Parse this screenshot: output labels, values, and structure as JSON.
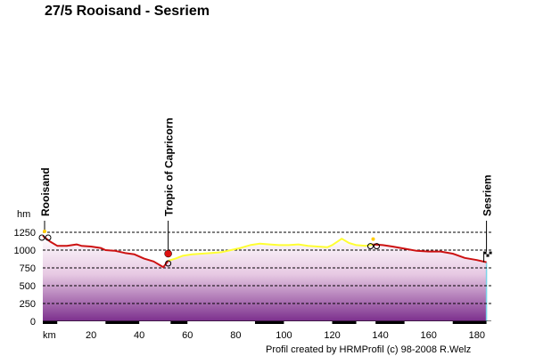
{
  "title": "27/5 Rooisand - Sesriem",
  "credit": "Profil created by HRMProfil (c) 98-2008 R.Welz",
  "chart_data": {
    "type": "area",
    "title": "27/5 Rooisand - Sesriem",
    "ylabel": "hm",
    "xlabel": "km",
    "xlim": [
      0,
      186
    ],
    "ylim": [
      0,
      1250
    ],
    "x_ticks": [
      20,
      40,
      60,
      80,
      100,
      120,
      140,
      160,
      180
    ],
    "y_ticks": [
      0,
      250,
      500,
      750,
      1000,
      1250
    ],
    "grid": true,
    "profile": [
      [
        0,
        1200
      ],
      [
        3,
        1120
      ],
      [
        6,
        1060
      ],
      [
        10,
        1060
      ],
      [
        14,
        1080
      ],
      [
        16,
        1060
      ],
      [
        20,
        1050
      ],
      [
        24,
        1030
      ],
      [
        26,
        1000
      ],
      [
        30,
        990
      ],
      [
        34,
        960
      ],
      [
        38,
        940
      ],
      [
        42,
        880
      ],
      [
        46,
        840
      ],
      [
        49,
        780
      ],
      [
        50,
        760
      ],
      [
        52,
        850
      ],
      [
        55,
        880
      ],
      [
        58,
        920
      ],
      [
        62,
        940
      ],
      [
        66,
        950
      ],
      [
        70,
        960
      ],
      [
        74,
        970
      ],
      [
        78,
        1000
      ],
      [
        82,
        1030
      ],
      [
        86,
        1070
      ],
      [
        90,
        1090
      ],
      [
        94,
        1080
      ],
      [
        98,
        1070
      ],
      [
        102,
        1070
      ],
      [
        106,
        1080
      ],
      [
        110,
        1060
      ],
      [
        114,
        1050
      ],
      [
        118,
        1040
      ],
      [
        120,
        1070
      ],
      [
        124,
        1160
      ],
      [
        127,
        1100
      ],
      [
        130,
        1070
      ],
      [
        134,
        1060
      ],
      [
        137,
        1080
      ],
      [
        141,
        1070
      ],
      [
        145,
        1050
      ],
      [
        150,
        1020
      ],
      [
        155,
        990
      ],
      [
        160,
        980
      ],
      [
        165,
        980
      ],
      [
        170,
        950
      ],
      [
        175,
        890
      ],
      [
        180,
        860
      ],
      [
        184,
        830
      ]
    ],
    "segments": [
      {
        "from": 0,
        "to": 52,
        "color": "#cc1111"
      },
      {
        "from": 52,
        "to": 137,
        "color": "#ffff33"
      },
      {
        "from": 137,
        "to": 184,
        "color": "#cc1111"
      }
    ],
    "waypoints": [
      {
        "name": "Rooisand",
        "km": 0,
        "elevation": 1200
      },
      {
        "name": "Tropic of Capricorn",
        "km": 52,
        "elevation": 850
      },
      {
        "name": "Sesriem",
        "km": 184,
        "elevation": 830
      }
    ]
  }
}
